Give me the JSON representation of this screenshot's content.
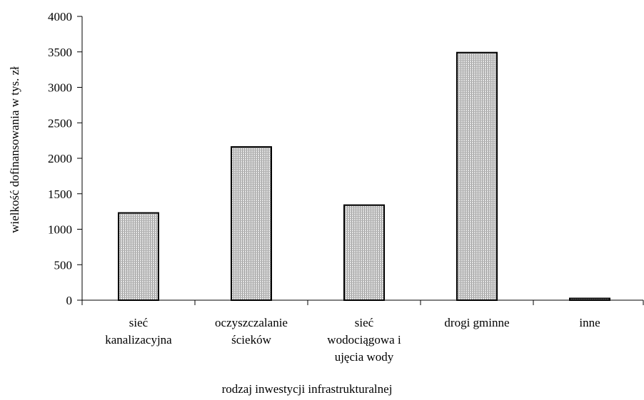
{
  "chart_data": {
    "type": "bar",
    "title": "",
    "xlabel": "rodzaj inwestycji infrastrukturalnej",
    "ylabel": "wielkość dofinansowania w tys. zł",
    "ylim": [
      0,
      4000
    ],
    "yticks": [
      "0",
      "500",
      "1000",
      "1500",
      "2000",
      "2500",
      "3000",
      "3500",
      "4000"
    ],
    "categories": [
      [
        "sieć",
        "kanalizacyjna"
      ],
      [
        "oczyszczalanie",
        "ścieków"
      ],
      [
        "sieć",
        "wodociągowa i",
        "ujęcia wody"
      ],
      [
        "drogi gminne"
      ],
      [
        "inne"
      ]
    ],
    "values": [
      1230,
      2160,
      1340,
      3490,
      25
    ],
    "grid": false,
    "legend": "none",
    "bar_color": "#c8c8c8"
  }
}
